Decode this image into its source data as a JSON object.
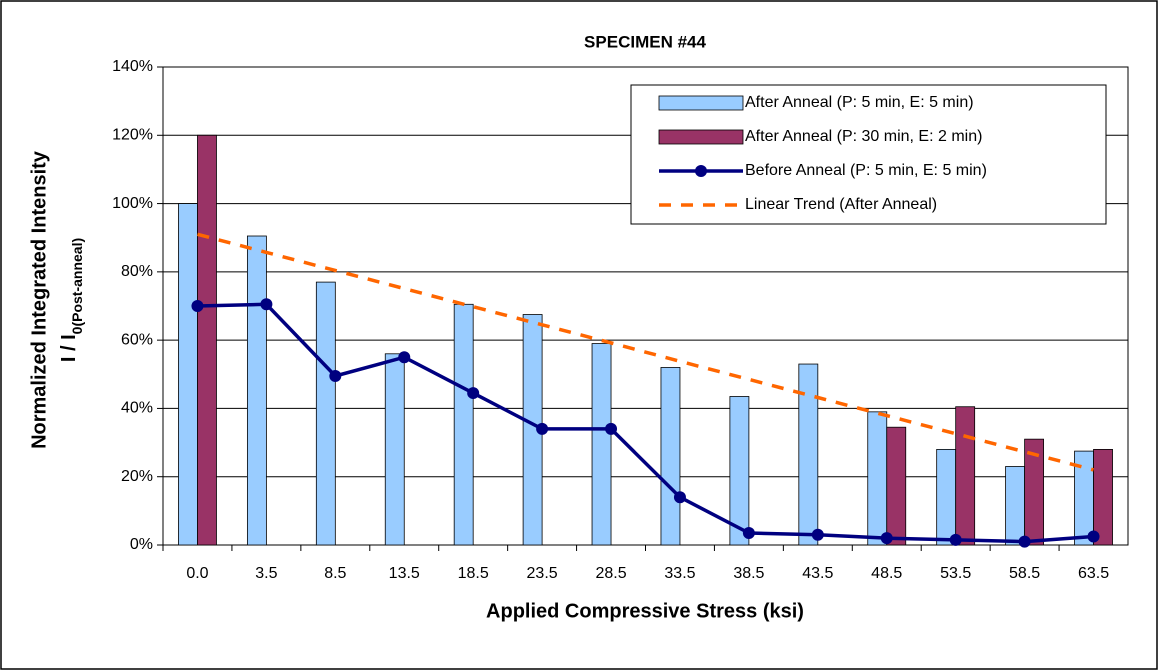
{
  "chart_data": {
    "type": "bar",
    "title": "SPECIMEN #44",
    "x_label": "Applied Compressive Stress (ksi)",
    "y_label": "Normalized Integrated Intensity",
    "y_label_2": "I / I",
    "y_label_2_sub": "0(Post-anneal)",
    "categories": [
      "0.0",
      "3.5",
      "8.5",
      "13.5",
      "18.5",
      "23.5",
      "28.5",
      "33.5",
      "38.5",
      "43.5",
      "48.5",
      "53.5",
      "58.5",
      "63.5"
    ],
    "series": [
      {
        "name": "After Anneal (P: 5 min, E: 5 min)",
        "style": "bar",
        "color": "#99ccff",
        "values": [
          100,
          90.5,
          77,
          56,
          70.5,
          67.5,
          59,
          52,
          43.5,
          53,
          39,
          28,
          23,
          27.5
        ]
      },
      {
        "name": "After Anneal (P: 30 min, E: 2 min)",
        "style": "bar",
        "color": "#993366",
        "values": [
          120,
          null,
          null,
          null,
          null,
          null,
          null,
          null,
          null,
          null,
          34.5,
          40.5,
          31,
          28
        ]
      },
      {
        "name": "Before Anneal (P: 5 min, E: 5 min)",
        "style": "line",
        "color": "#000080",
        "values": [
          70,
          70.5,
          49.5,
          55,
          44.5,
          34,
          34,
          14,
          3.5,
          3,
          2,
          1.5,
          1,
          2.5
        ]
      },
      {
        "name": "Linear Trend (After Anneal)",
        "style": "dashed",
        "color": "#ff6600",
        "values": [
          91,
          85.7,
          80.4,
          75.1,
          69.8,
          64.5,
          59.2,
          53.8,
          48.5,
          43.2,
          37.9,
          32.6,
          27.3,
          22
        ]
      }
    ],
    "ylim": [
      0,
      140
    ],
    "yticks": [
      {
        "value": 0,
        "label": "0%"
      },
      {
        "value": 20,
        "label": "20%"
      },
      {
        "value": 40,
        "label": "40%"
      },
      {
        "value": 60,
        "label": "60%"
      },
      {
        "value": 80,
        "label": "80%"
      },
      {
        "value": 100,
        "label": "100%"
      },
      {
        "value": 120,
        "label": "120%"
      },
      {
        "value": 140,
        "label": "140%"
      }
    ],
    "grid": true,
    "legend": "upper-right"
  }
}
